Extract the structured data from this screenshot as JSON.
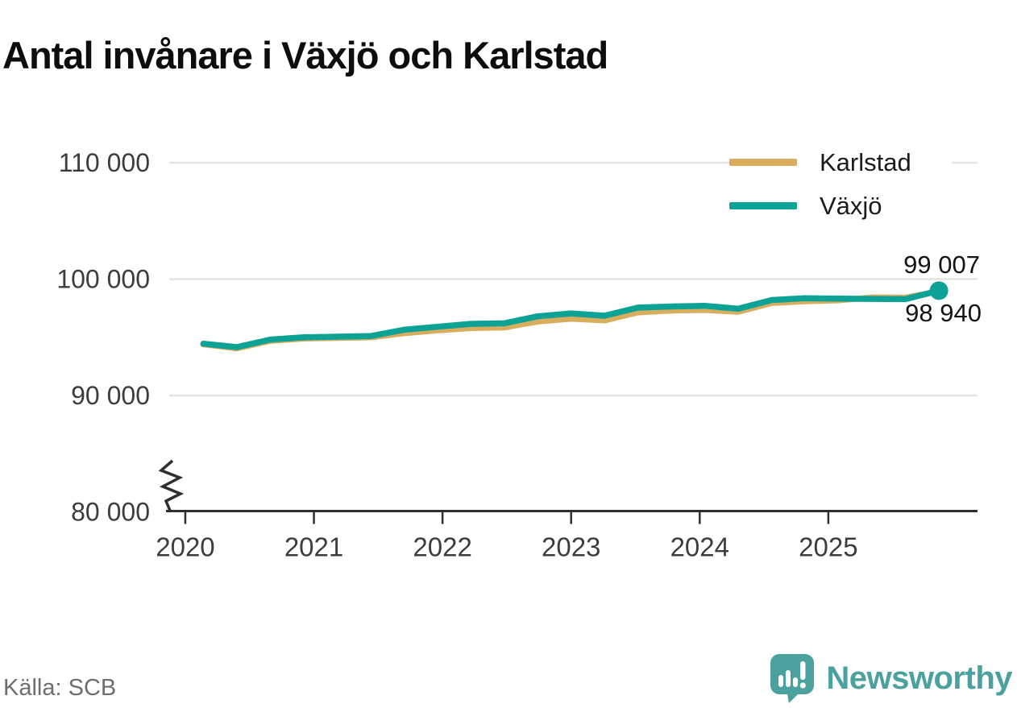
{
  "header": {
    "title": "Antal invånare i Växjö och Karlstad"
  },
  "footer": {
    "source": "Källa: SCB",
    "brand_name": "Newsworthy",
    "brand_color": "#4ba19d",
    "brand_icon": "newsworthy-bar-chart-bubble-icon"
  },
  "chart_data": {
    "type": "line",
    "title": "Antal invånare i Växjö och Karlstad",
    "xlabel": "",
    "ylabel": "",
    "x": [
      2020.14,
      2020.4,
      2020.66,
      2020.92,
      2021.18,
      2021.44,
      2021.7,
      2021.96,
      2022.22,
      2022.48,
      2022.74,
      2023.0,
      2023.26,
      2023.52,
      2023.78,
      2024.04,
      2024.3,
      2024.56,
      2024.82,
      2025.08,
      2025.34,
      2025.6,
      2025.86
    ],
    "series": [
      {
        "name": "Karlstad",
        "color": "#d9ad5e",
        "values": [
          94400,
          94050,
          94700,
          94900,
          94950,
          95000,
          95350,
          95600,
          95800,
          95850,
          96350,
          96600,
          96450,
          97150,
          97300,
          97350,
          97200,
          97950,
          98100,
          98180,
          98420,
          98400,
          98940
        ]
      },
      {
        "name": "Växjö",
        "color": "#0ca295",
        "values": [
          94450,
          94150,
          94800,
          95000,
          95050,
          95100,
          95650,
          95900,
          96150,
          96200,
          96800,
          97050,
          96850,
          97550,
          97650,
          97700,
          97450,
          98200,
          98350,
          98320,
          98300,
          98280,
          99007
        ]
      }
    ],
    "xticks": [
      2020,
      2021,
      2022,
      2023,
      2024,
      2025
    ],
    "xtick_labels": [
      "2020",
      "2021",
      "2022",
      "2023",
      "2024",
      "2025"
    ],
    "yticks": [
      80000,
      90000,
      100000,
      110000
    ],
    "ytick_labels": [
      "80 000",
      "90 000",
      "100 000",
      "110 000"
    ],
    "xlim": [
      2019.875,
      2026.16
    ],
    "ylim": [
      80000,
      110000
    ],
    "grid": "horizontal",
    "axis_break_at_bottom": true,
    "legend_position": "top-right",
    "end_dot_series": "Växjö",
    "annotations": [
      {
        "series": "Växjö",
        "value": 99007,
        "text": "99 007"
      },
      {
        "series": "Karlstad",
        "value": 98940,
        "text": "98 940"
      }
    ],
    "colors": {
      "grid": "#e4e4e4",
      "axis": "#2f2f2f",
      "tick_label": "#3d3d3d",
      "annotation": "#141414"
    }
  }
}
